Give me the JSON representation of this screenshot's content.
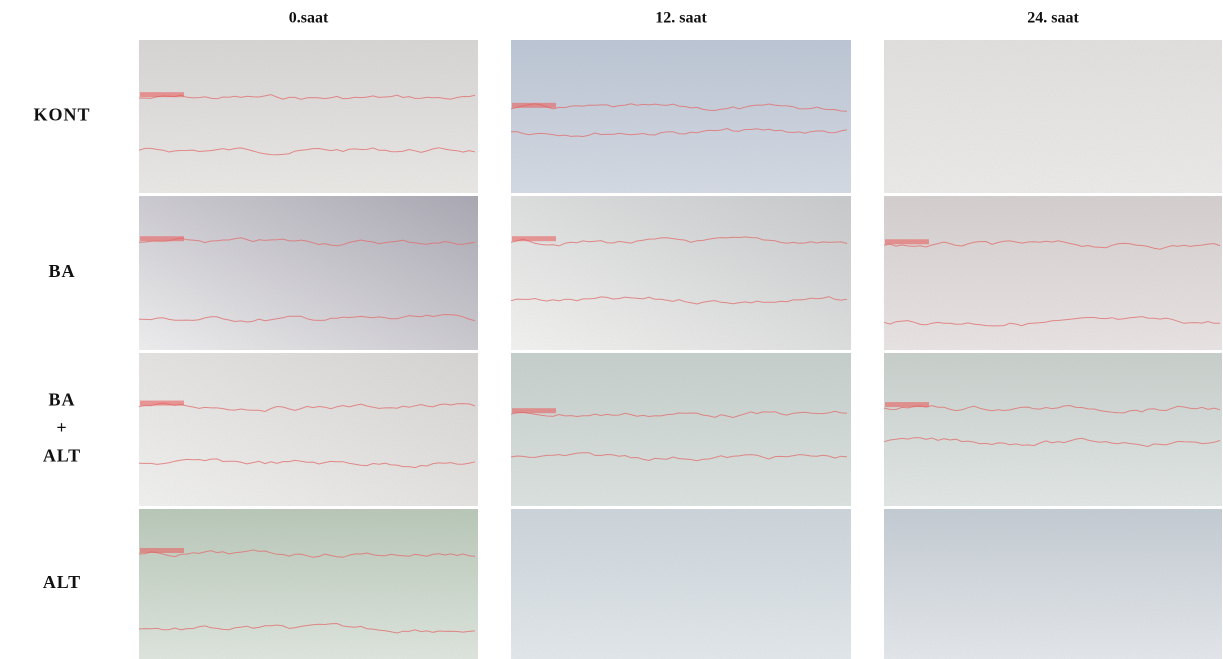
{
  "columns": [
    "0.saat",
    "12. saat",
    "24. saat"
  ],
  "rows": [
    [
      "KONT"
    ],
    [
      "BA"
    ],
    [
      "BA",
      "+",
      "ALT"
    ],
    [
      "ALT"
    ]
  ]
}
